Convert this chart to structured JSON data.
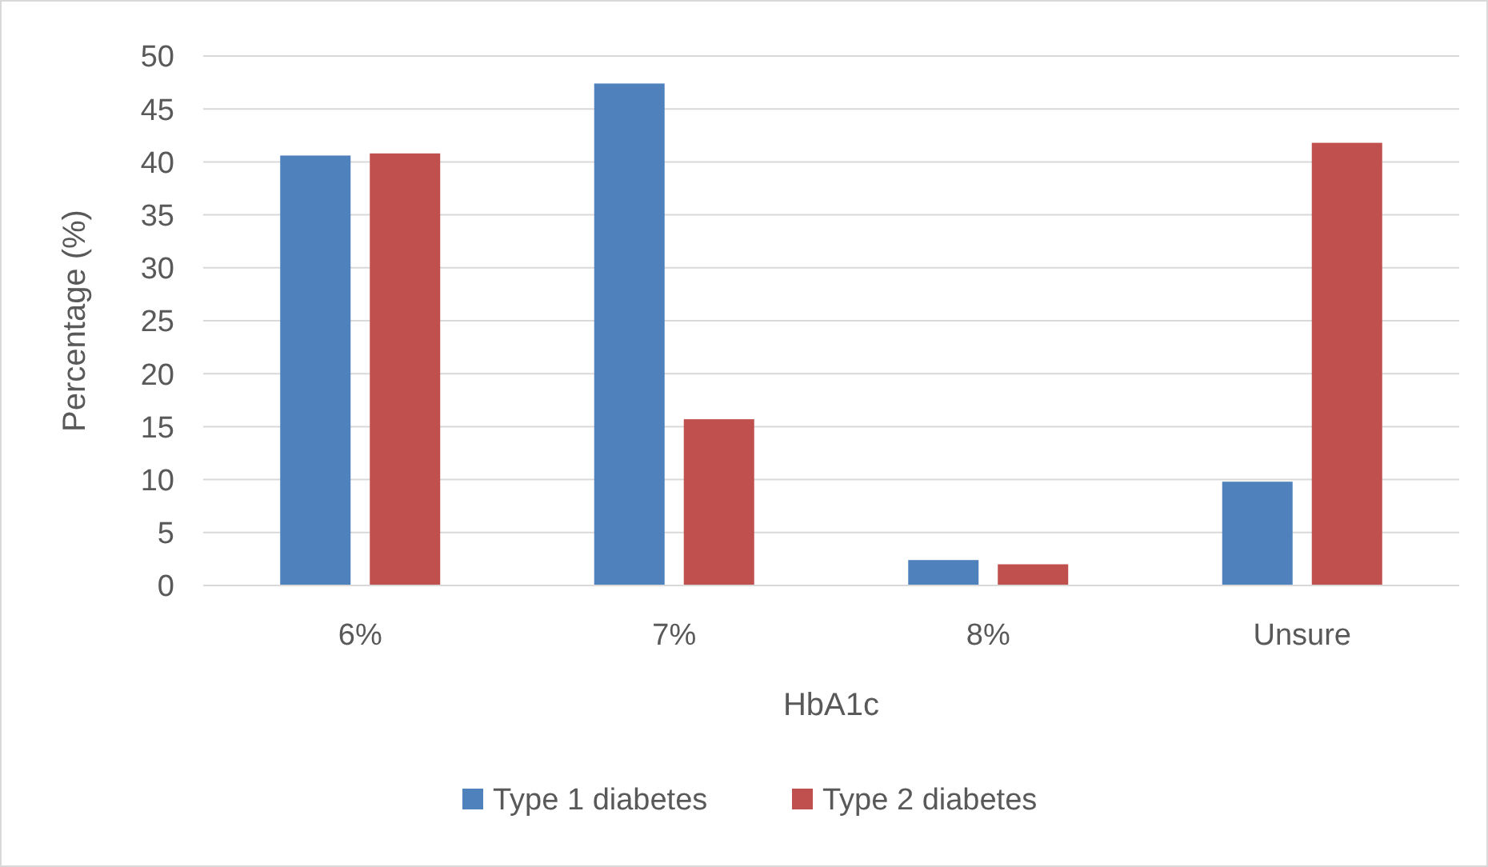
{
  "chart_data": {
    "type": "bar",
    "xlabel": "HbA1c",
    "ylabel": "Percentage (%)",
    "categories": [
      "6%",
      "7%",
      "8%",
      "Unsure"
    ],
    "series": [
      {
        "name": "Type 1 diabetes",
        "color": "#4f81bd",
        "values": [
          40.6,
          47.4,
          2.4,
          9.8
        ]
      },
      {
        "name": "Type 2 diabetes",
        "color": "#c0504d",
        "values": [
          40.8,
          15.7,
          2.0,
          41.8
        ]
      }
    ],
    "ylim": [
      0,
      50
    ],
    "yticks": [
      0,
      5,
      10,
      15,
      20,
      25,
      30,
      35,
      40,
      45,
      50
    ],
    "grid": "y",
    "legend": "bottom"
  }
}
